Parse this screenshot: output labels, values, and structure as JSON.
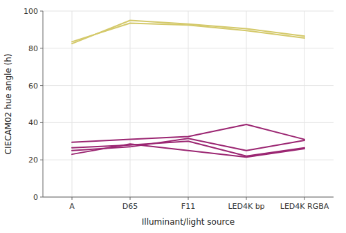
{
  "chart_data": {
    "type": "line",
    "categories": [
      "A",
      "D65",
      "F11",
      "LED4K bp",
      "LED4K RGBA"
    ],
    "series": [
      {
        "color": "#d4c96a",
        "values": [
          82.5,
          95.0,
          93.0,
          90.5,
          86.5
        ]
      },
      {
        "color": "#d4c96a",
        "values": [
          83.5,
          93.5,
          92.5,
          89.5,
          85.5
        ]
      },
      {
        "color": "#9b2672",
        "values": [
          29.5,
          31.0,
          32.5,
          39.0,
          31.0
        ]
      },
      {
        "color": "#9b2672",
        "values": [
          26.5,
          28.0,
          30.0,
          22.0,
          26.5
        ]
      },
      {
        "color": "#9b2672",
        "values": [
          25.0,
          27.0,
          31.5,
          25.0,
          30.5
        ]
      },
      {
        "color": "#9b2672",
        "values": [
          23.0,
          28.5,
          25.0,
          21.5,
          26.0
        ]
      }
    ],
    "xlabel": "Illuminant/light source",
    "ylabel": "CIECAM02 hue angle (h)",
    "ylim": [
      0,
      100
    ],
    "yticks": [
      0,
      20,
      40,
      60,
      80,
      100
    ],
    "grid": true
  }
}
